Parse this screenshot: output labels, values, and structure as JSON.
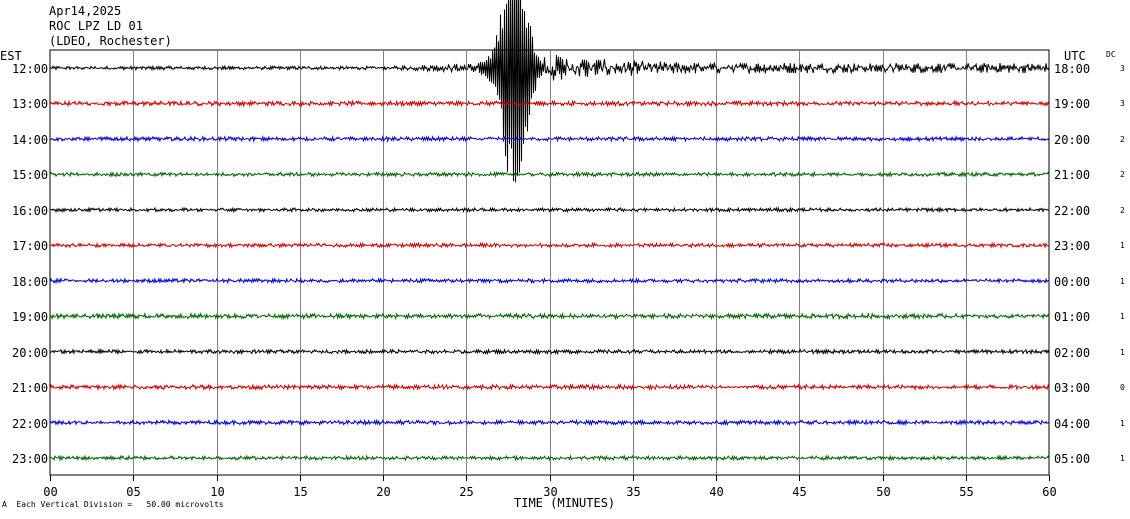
{
  "header": {
    "date": "Apr14,2025",
    "station": "ROC LPZ LD 01",
    "network": "(LDEO, Rochester)"
  },
  "left_timezone": "EST",
  "right_timezone": "UTC",
  "dc_label": "DC",
  "footer": {
    "scale_mark": "A",
    "scale_text": "Each Vertical Division =   50.00 microvolts"
  },
  "chart_data": {
    "type": "line",
    "title": "",
    "xlabel": "TIME (MINUTES)",
    "ylabel": "",
    "xlim": [
      0,
      60
    ],
    "x_ticks": [
      "00",
      "05",
      "10",
      "15",
      "20",
      "25",
      "30",
      "35",
      "40",
      "45",
      "50",
      "55",
      "60"
    ],
    "grid": true,
    "rows": [
      {
        "left_label": "12:00",
        "right_label": "18:00",
        "dc": "3",
        "color": "#000000",
        "noise": 1.2,
        "event": true
      },
      {
        "left_label": "13:00",
        "right_label": "19:00",
        "dc": "3",
        "color": "#cc0000",
        "noise": 1.5,
        "event": false
      },
      {
        "left_label": "14:00",
        "right_label": "20:00",
        "dc": "2",
        "color": "#0000cc",
        "noise": 1.4,
        "event": false
      },
      {
        "left_label": "15:00",
        "right_label": "21:00",
        "dc": "2",
        "color": "#006600",
        "noise": 1.3,
        "event": false
      },
      {
        "left_label": "16:00",
        "right_label": "22:00",
        "dc": "2",
        "color": "#000000",
        "noise": 1.2,
        "event": false
      },
      {
        "left_label": "17:00",
        "right_label": "23:00",
        "dc": "1",
        "color": "#cc0000",
        "noise": 1.3,
        "event": false
      },
      {
        "left_label": "18:00",
        "right_label": "00:00",
        "dc": "1",
        "color": "#0000cc",
        "noise": 1.3,
        "event": false
      },
      {
        "left_label": "19:00",
        "right_label": "01:00",
        "dc": "1",
        "color": "#006600",
        "noise": 1.6,
        "event": false
      },
      {
        "left_label": "20:00",
        "right_label": "02:00",
        "dc": "1",
        "color": "#000000",
        "noise": 1.3,
        "event": false
      },
      {
        "left_label": "21:00",
        "right_label": "03:00",
        "dc": "0",
        "color": "#cc0000",
        "noise": 1.5,
        "event": false
      },
      {
        "left_label": "22:00",
        "right_label": "04:00",
        "dc": "1",
        "color": "#0000cc",
        "noise": 1.4,
        "event": false
      },
      {
        "left_label": "23:00",
        "right_label": "05:00",
        "dc": "1",
        "color": "#006600",
        "noise": 1.3,
        "event": false
      }
    ],
    "event": {
      "row": 0,
      "onset_minute": 20.3,
      "peak_minute": 27.9,
      "peak_trace_rows": 3.5
    }
  }
}
